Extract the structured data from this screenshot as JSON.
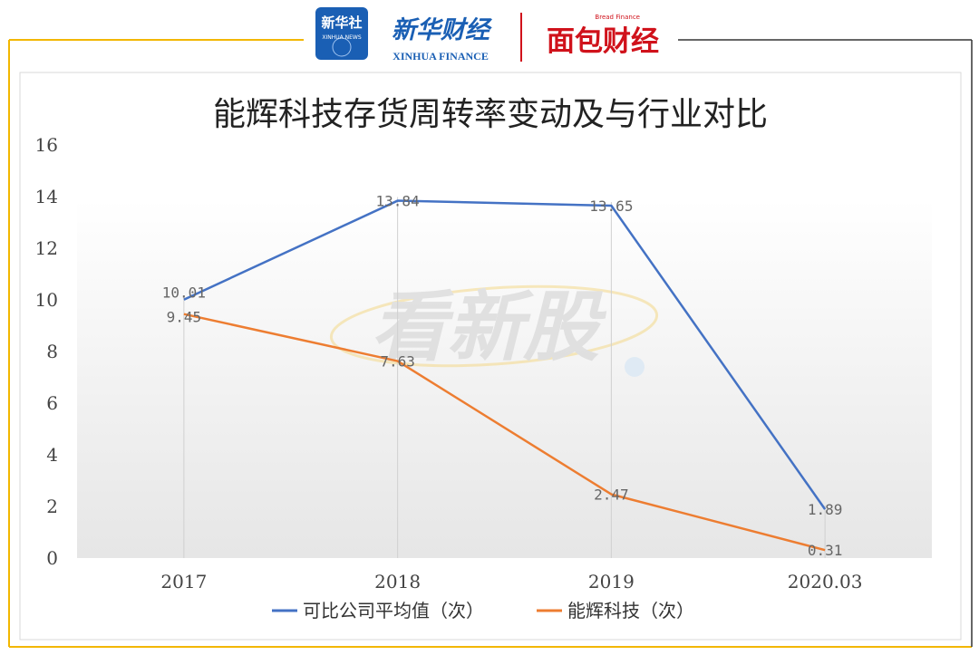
{
  "header": {
    "xinhua_news_logo": "新华社",
    "xinhua_news_sub": "XINHUA NEWS",
    "xinhua_finance_cn": "新华财经",
    "xinhua_finance_en": "XINHUA FINANCE",
    "bread_finance_en": "Bread Finance",
    "bread_finance_cn": "面包财经"
  },
  "watermark": "看新股",
  "colors": {
    "frame": "#f2b700",
    "series_avg": "#4472c4",
    "series_company": "#ed7d31",
    "xinhua_blue": "#1a5fb4",
    "bread_red": "#d0121b"
  },
  "chart_data": {
    "type": "line",
    "title": "能辉科技存货周转率变动及与行业对比",
    "categories": [
      "2017",
      "2018",
      "2019",
      "2020.03"
    ],
    "series": [
      {
        "name": "可比公司平均值（次）",
        "values": [
          10.01,
          13.84,
          13.65,
          1.89
        ],
        "labels": [
          "10.01",
          "13.84",
          "13.65",
          "1.89"
        ]
      },
      {
        "name": "能辉科技（次）",
        "values": [
          9.45,
          7.63,
          2.47,
          0.31
        ],
        "labels": [
          "9.45",
          "7.63",
          "2.47",
          "0.31"
        ]
      }
    ],
    "ylim": [
      0,
      16
    ],
    "yticks": [
      "0",
      "2",
      "4",
      "6",
      "8",
      "10",
      "12",
      "14",
      "16"
    ],
    "grid": "vertical",
    "legend": "bottom"
  }
}
